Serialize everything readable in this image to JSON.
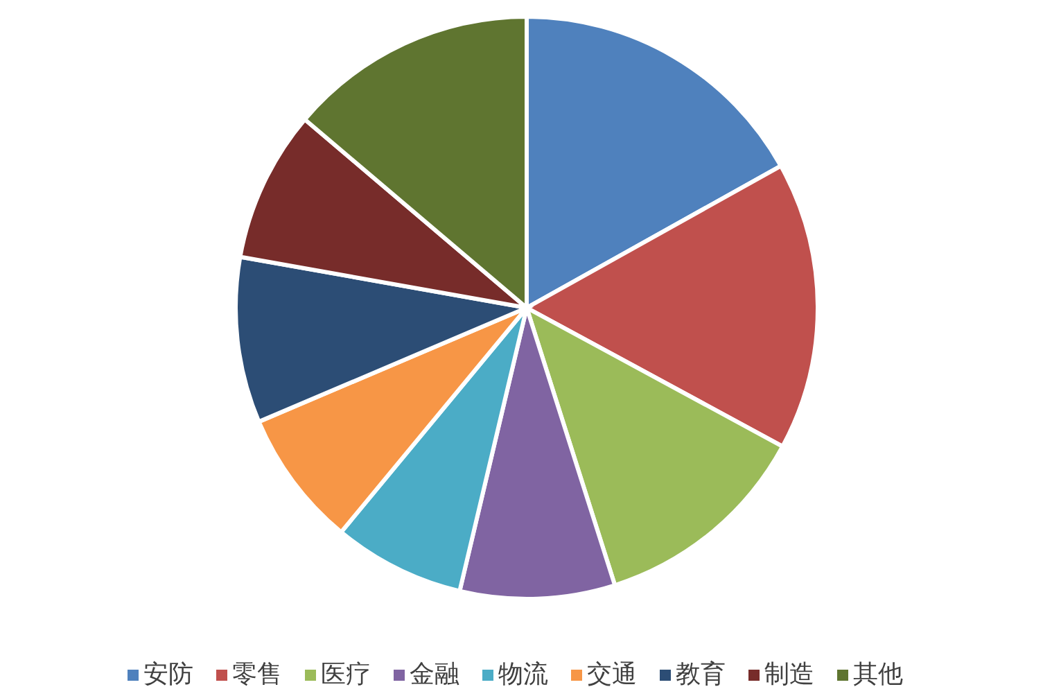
{
  "chart_data": {
    "type": "pie",
    "categories": [
      "安防",
      "零售",
      "医疗",
      "金融",
      "物流",
      "交通",
      "教育",
      "制造",
      "其他"
    ],
    "values": [
      16.9,
      16.0,
      12.2,
      8.6,
      7.3,
      7.6,
      9.2,
      8.4,
      13.8
    ],
    "colors": [
      "#4f81bd",
      "#c0504d",
      "#9bbb59",
      "#8064a2",
      "#4bacc6",
      "#f79646",
      "#2c4d75",
      "#772c2a",
      "#5f7530"
    ],
    "legend": "bottom"
  }
}
